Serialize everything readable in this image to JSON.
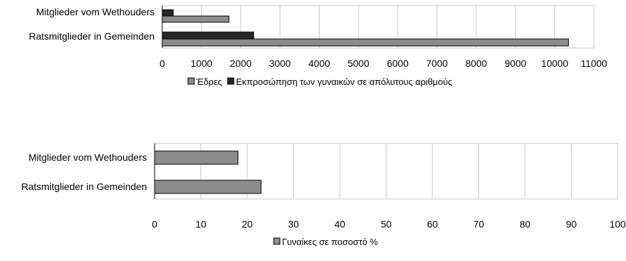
{
  "colors": {
    "seats": "#8c8c8c",
    "women_abs": "#262626",
    "women_pct": "#8c8c8c",
    "grid": "#c8c8c8",
    "axis": "#000000",
    "bar_outline": "#000000"
  },
  "chart_data": [
    {
      "type": "bar",
      "orientation": "horizontal",
      "categories": [
        "Mitglieder vom Wethouders",
        "Ratsmitglieder in Gemeinden"
      ],
      "series": [
        {
          "name": "Έδρες",
          "values": [
            1700,
            10350
          ]
        },
        {
          "name": "Εκπροσώπηση των γυναικών σε απόλυτους αριθμούς",
          "values": [
            280,
            2330
          ]
        }
      ],
      "xlim": [
        0,
        11000
      ],
      "xticks": [
        "0",
        "1000",
        "2000",
        "3000",
        "4000",
        "5000",
        "6000",
        "7000",
        "8000",
        "9000",
        "10000",
        "11000"
      ],
      "grid": true,
      "legend_position": "bottom"
    },
    {
      "type": "bar",
      "orientation": "horizontal",
      "categories": [
        "Mitglieder vom Wethouders",
        "Ratsmitglieder in Gemeinden"
      ],
      "series": [
        {
          "name": "Γυναίκες σε ποσοστό %",
          "values": [
            18,
            23
          ]
        }
      ],
      "xlim": [
        0,
        100
      ],
      "xticks": [
        "0",
        "10",
        "20",
        "30",
        "40",
        "50",
        "60",
        "70",
        "80",
        "90",
        "100"
      ],
      "grid": true,
      "legend_position": "bottom"
    }
  ]
}
